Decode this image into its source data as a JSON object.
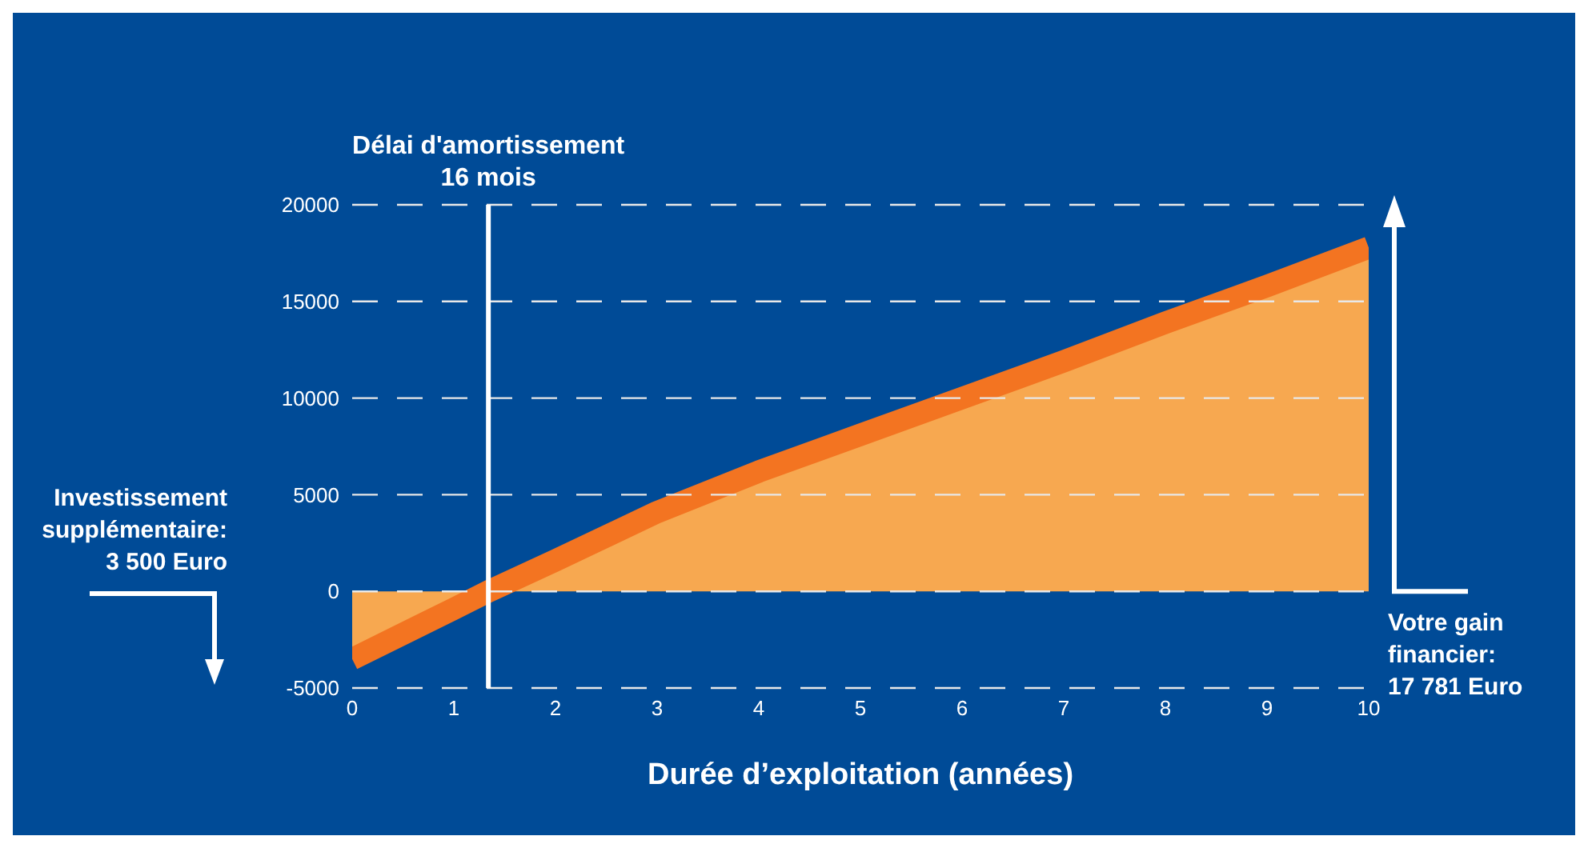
{
  "chart_data": {
    "type": "area",
    "xlabel": "Durée d’exploitation (années)",
    "x": [
      0,
      1,
      1.34,
      2,
      3,
      4,
      5,
      6,
      7,
      8,
      9,
      10
    ],
    "series": [
      {
        "color": "#f7a850",
        "values": [
          -3500,
          -900,
          0,
          1600,
          4100,
          6200,
          8100,
          10000,
          11900,
          13900,
          15800,
          17781
        ]
      }
    ],
    "xlim": [
      0,
      10
    ],
    "xticks": [
      0,
      1,
      2,
      3,
      4,
      5,
      6,
      7,
      8,
      9,
      10
    ],
    "ylim": [
      -5000,
      20000
    ],
    "yticks": [
      -5000,
      0,
      5000,
      10000,
      15000,
      20000
    ],
    "grid": "y",
    "ref_lines": [
      {
        "axis": "x",
        "value": 1.34,
        "label": "Délai d'amortissement\n16 mois",
        "color": "#ffffff"
      }
    ],
    "annotations": [
      "Investissement\nsupplémentaire:\n3 500 Euro",
      "Votre gain\nfinancier:\n17 781 Euro"
    ]
  }
}
